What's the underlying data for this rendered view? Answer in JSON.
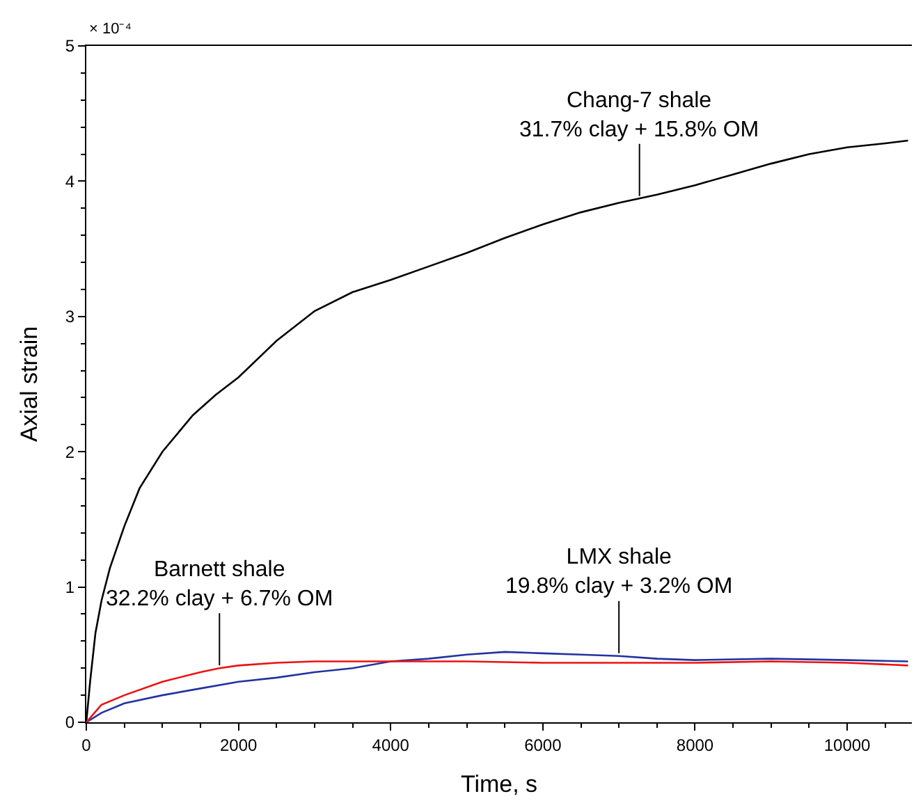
{
  "chart_data": {
    "type": "line",
    "xlabel": "Time, s",
    "ylabel": "Axial strain",
    "xlim": [
      0,
      10850
    ],
    "xticks": [
      0,
      2000,
      4000,
      6000,
      8000,
      10000
    ],
    "ylim": [
      0,
      5
    ],
    "yticks": [
      0,
      1,
      2,
      3,
      4,
      5
    ],
    "marker": "none",
    "line_style": "solid",
    "series": [
      {
        "color": "#000000",
        "x": [
          0,
          50,
          120,
          200,
          310,
          500,
          700,
          1000,
          1400,
          1700,
          2000,
          2500,
          3000,
          3500,
          4000,
          4500,
          5000,
          5500,
          6000,
          6500,
          7000,
          7500,
          8000,
          8500,
          9000,
          9500,
          10000,
          10500,
          10800
        ],
        "values": [
          0,
          0.3,
          0.66,
          0.9,
          1.14,
          1.45,
          1.73,
          2.0,
          2.27,
          2.42,
          2.55,
          2.82,
          3.04,
          3.18,
          3.27,
          3.37,
          3.47,
          3.58,
          3.68,
          3.77,
          3.84,
          3.9,
          3.97,
          4.05,
          4.13,
          4.2,
          4.25,
          4.28,
          4.3
        ]
      },
      {
        "color": "#2233a0",
        "x": [
          0,
          200,
          500,
          1000,
          1500,
          2000,
          2500,
          3000,
          3500,
          4000,
          4500,
          5000,
          5500,
          6000,
          6500,
          7000,
          7500,
          8000,
          9000,
          10000,
          10800
        ],
        "values": [
          0,
          0.07,
          0.14,
          0.2,
          0.25,
          0.3,
          0.33,
          0.37,
          0.4,
          0.45,
          0.47,
          0.5,
          0.52,
          0.51,
          0.5,
          0.49,
          0.47,
          0.46,
          0.47,
          0.46,
          0.45
        ]
      },
      {
        "color": "#ee1111",
        "x": [
          0,
          200,
          500,
          1000,
          1500,
          1750,
          2000,
          2500,
          3000,
          4000,
          5000,
          6000,
          7000,
          8000,
          9000,
          10000,
          10800
        ],
        "values": [
          0,
          0.13,
          0.2,
          0.3,
          0.37,
          0.4,
          0.42,
          0.44,
          0.45,
          0.45,
          0.45,
          0.44,
          0.44,
          0.44,
          0.45,
          0.44,
          0.42
        ]
      }
    ],
    "annotations": [
      "× 10⁻⁴",
      {
        "text": "Chang-7 shale\n31.7% clay + 15.8% OM",
        "x": 7270,
        "y": 3.87
      },
      {
        "text": "Barnett shale\n32.2% clay + 6.7% OM",
        "x": 1750,
        "y": 0.4
      },
      {
        "text": "LMX shale\n19.8% clay + 3.2% OM",
        "x": 7000,
        "y": 0.49
      }
    ]
  }
}
